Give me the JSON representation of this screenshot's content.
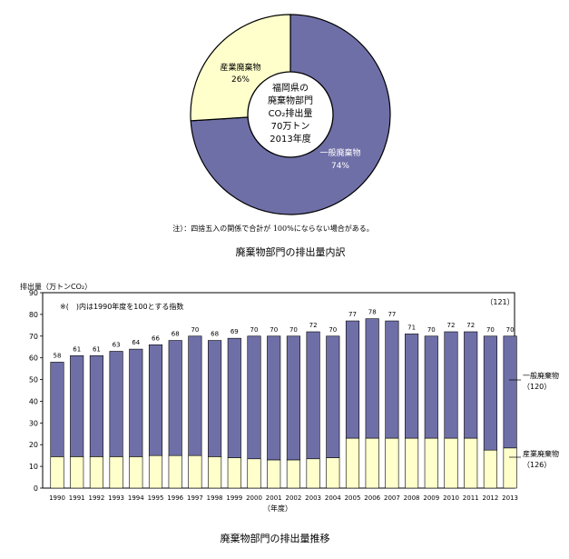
{
  "pie": {
    "center_lines": [
      "福岡県の",
      "廃棄物部門",
      "CO₂排出量",
      "70万トン",
      "2013年度"
    ],
    "note": "注）：四捨五入の関係で合計が 100%にならない場合がある。",
    "caption": "廃棄物部門の排出量内訳",
    "colors": {
      "general": "#6f6fa8",
      "industrial": "#ffffcc"
    }
  },
  "bar": {
    "note": "※(　)内は1990年度を100とする指数",
    "caption": "廃棄物部門の排出量推移",
    "colors": {
      "general": "#6f6fa8",
      "industrial": "#ffffcc"
    }
  },
  "chart_data": [
    {
      "type": "pie",
      "title": "",
      "slices": [
        {
          "name": "一般廃棄物",
          "value": 74,
          "label": "74%"
        },
        {
          "name": "産業廃棄物",
          "value": 26,
          "label": "26%"
        }
      ]
    },
    {
      "type": "bar",
      "stacked": true,
      "title": "",
      "ylabel": "排出量（万トンCO₂）",
      "xlabel": "（年度）",
      "ylim": [
        0,
        90
      ],
      "yticks": [
        0,
        10,
        20,
        30,
        40,
        50,
        60,
        70,
        80,
        90
      ],
      "grid": false,
      "legend": "right",
      "categories": [
        "1990",
        "1991",
        "1992",
        "1993",
        "1994",
        "1995",
        "1996",
        "1997",
        "1998",
        "1999",
        "2000",
        "2001",
        "2002",
        "2003",
        "2004",
        "2005",
        "2006",
        "2007",
        "2008",
        "2009",
        "2010",
        "2011",
        "2012",
        "2013"
      ],
      "totals": [
        58,
        61,
        61,
        63,
        64,
        66,
        68,
        70,
        68,
        69,
        70,
        70,
        70,
        72,
        70,
        77,
        78,
        77,
        71,
        70,
        72,
        72,
        70,
        70
      ],
      "last_index_label": "（121）",
      "series": [
        {
          "name": "産業廃棄物",
          "index_label": "（126）",
          "values": [
            14.5,
            14.5,
            14.5,
            14.5,
            14.5,
            15,
            15,
            15,
            14.5,
            14,
            13.5,
            13,
            13,
            13.5,
            14,
            23,
            23,
            23,
            23,
            23,
            23,
            23,
            17.5,
            18.5
          ]
        },
        {
          "name": "一般廃棄物",
          "index_label": "（120）",
          "values": [
            43.5,
            46.5,
            46.5,
            48.5,
            49.5,
            51,
            53,
            55,
            53.5,
            55,
            56.5,
            57,
            57,
            58.5,
            56,
            54,
            55,
            54,
            48,
            47,
            49,
            49,
            52.5,
            51.5
          ]
        }
      ]
    }
  ]
}
